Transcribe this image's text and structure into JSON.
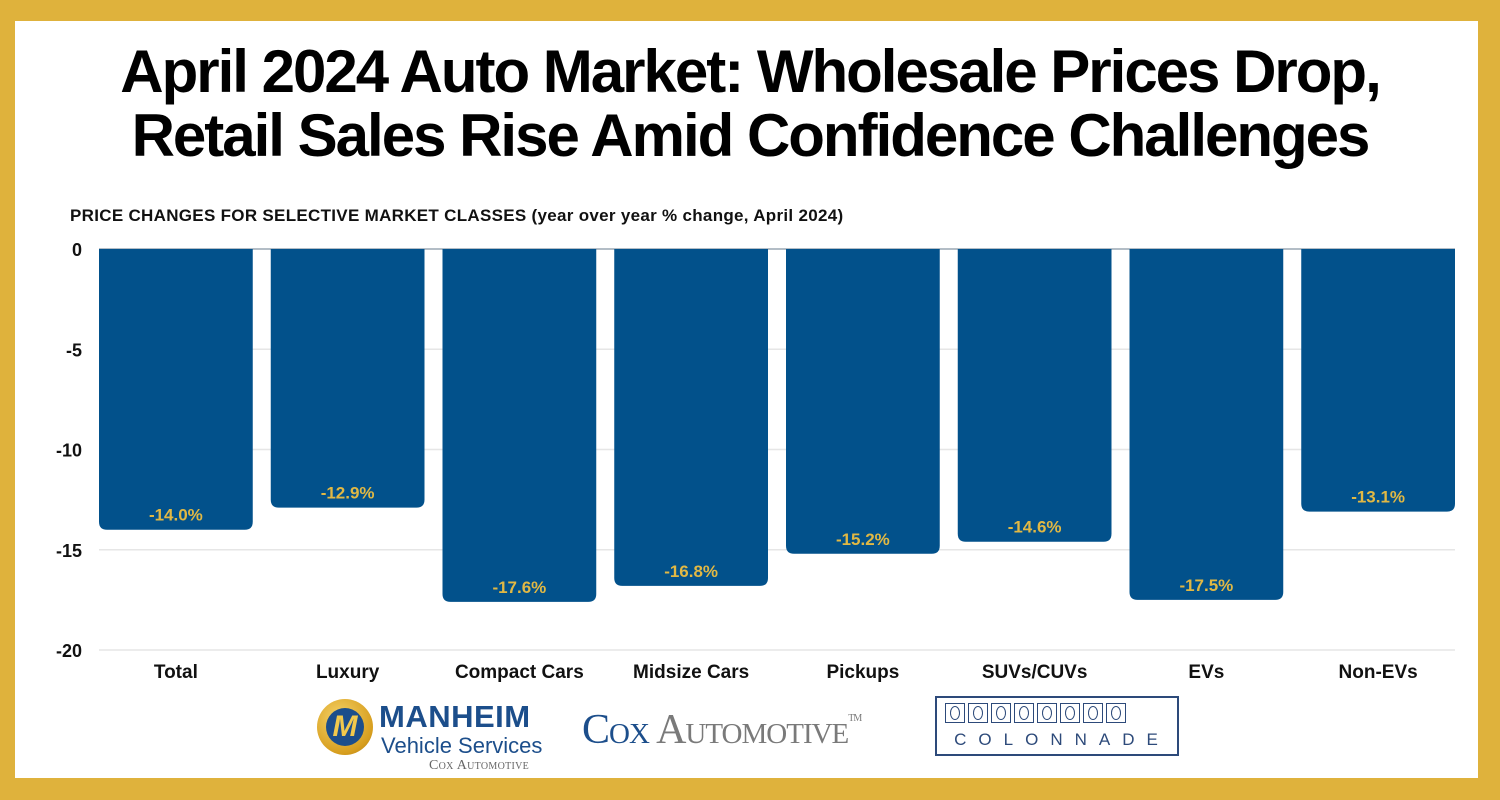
{
  "title_line1": "April 2024 Auto Market: Wholesale Prices Drop,",
  "title_line2": "Retail Sales Rise Amid Confidence Challenges",
  "colors": {
    "border": "#DFB23C",
    "bar": "#02518B",
    "label": "#E1B844",
    "gridline": "#E6E6E6"
  },
  "chart_data": {
    "type": "bar",
    "title": "PRICE CHANGES FOR SELECTIVE MARKET CLASSES (year over year % change, April 2024)",
    "xlabel": "",
    "ylabel": "",
    "categories": [
      "Total",
      "Luxury",
      "Compact Cars",
      "Midsize Cars",
      "Pickups",
      "SUVs/CUVs",
      "EVs",
      "Non-EVs"
    ],
    "values": [
      -14.0,
      -12.9,
      -17.6,
      -16.8,
      -15.2,
      -14.6,
      -17.5,
      -13.1
    ],
    "data_labels": [
      "-14.0%",
      "-12.9%",
      "-17.6%",
      "-16.8%",
      "-15.2%",
      "-14.6%",
      "-17.5%",
      "-13.1%"
    ],
    "ylim": [
      -20,
      0
    ],
    "yticks": [
      0,
      -5,
      -10,
      -15,
      -20
    ],
    "grid": true,
    "legend": "none"
  },
  "logos": {
    "manheim": {
      "emblem": "M",
      "line1": "MANHEIM",
      "line2": "Vehicle Services",
      "line3": "Cox Automotive"
    },
    "cox": {
      "first": "Cox",
      "rest": " Automotive",
      "tm": "TM"
    },
    "colonnade": {
      "text": "COLONNADE"
    }
  }
}
